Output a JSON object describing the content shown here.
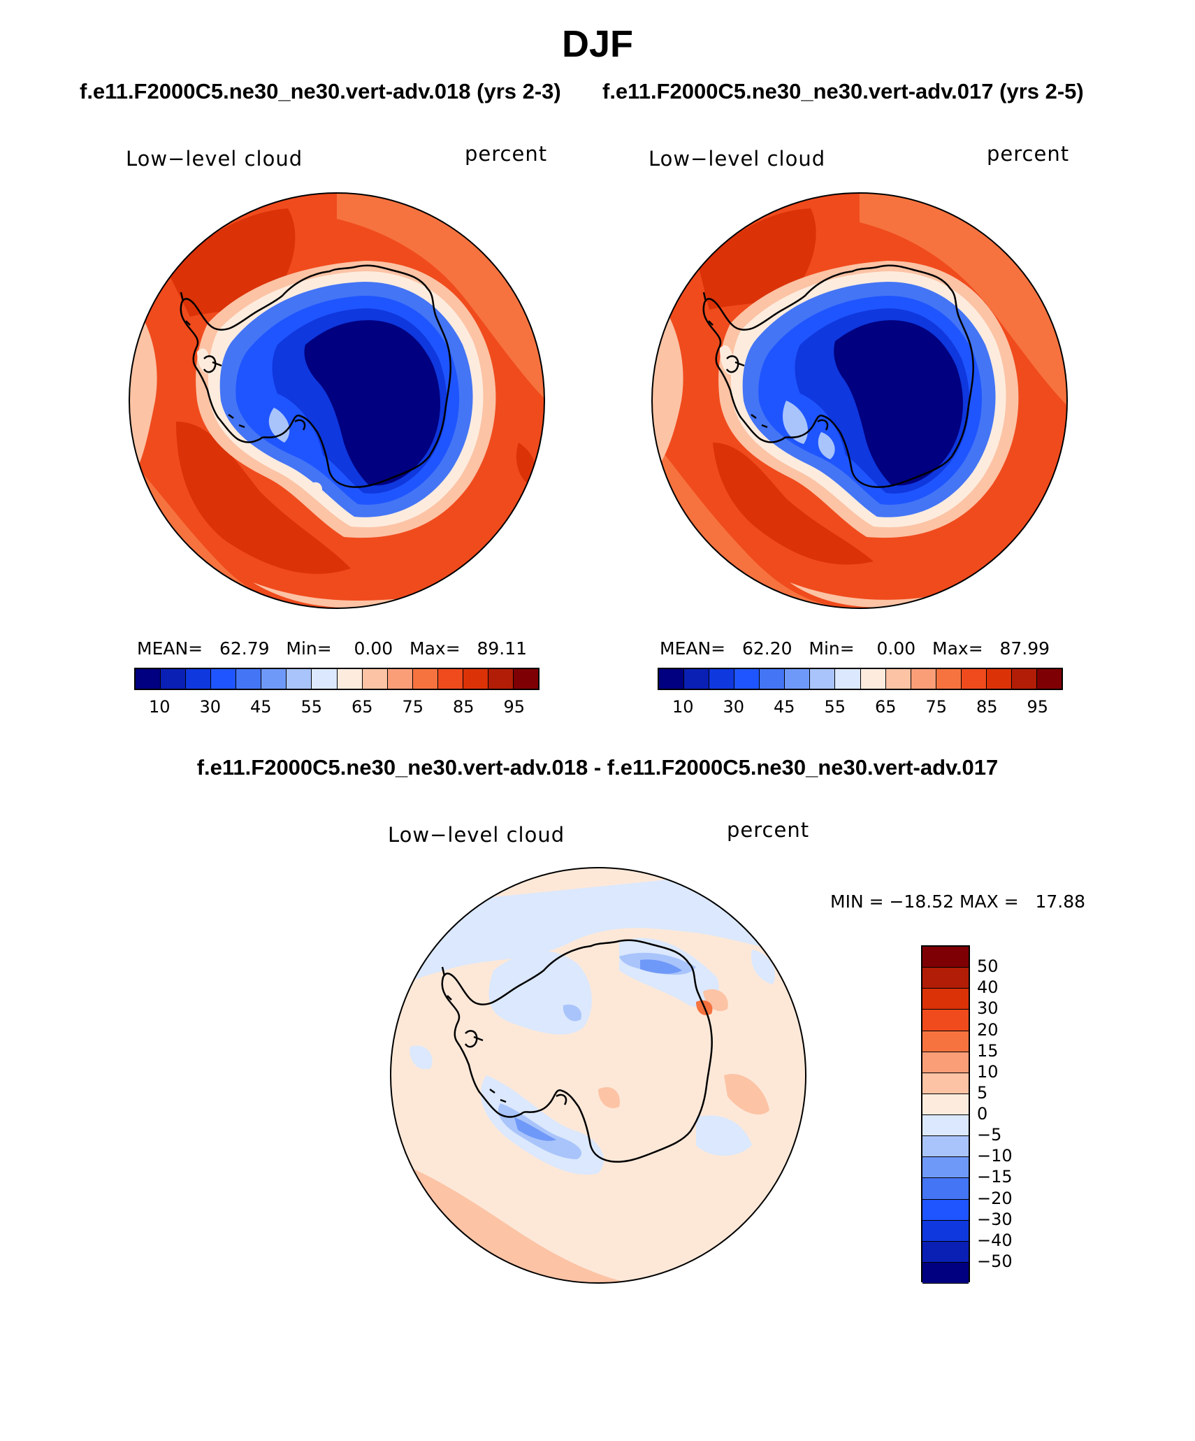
{
  "title": "DJF",
  "top_subtitle_left": "f.e11.F2000C5.ne30_ne30.vert-adv.018 (yrs 2-3)",
  "top_subtitle_right": "f.e11.F2000C5.ne30_ne30.vert-adv.017 (yrs 2-5)",
  "diff_subtitle": "f.e11.F2000C5.ne30_ne30.vert-adv.018 - f.e11.F2000C5.ne30_ne30.vert-adv.017",
  "panels": [
    {
      "variable": "Low−level cloud",
      "units": "percent",
      "stats": {
        "mean_label": "MEAN=",
        "mean": "62.79",
        "min_label": "Min=",
        "min": "0.00",
        "max_label": "Max=",
        "max": "89.11"
      }
    },
    {
      "variable": "Low−level cloud",
      "units": "percent",
      "stats": {
        "mean_label": "MEAN=",
        "mean": "62.20",
        "min_label": "Min=",
        "min": "0.00",
        "max_label": "Max=",
        "max": "87.99"
      }
    },
    {
      "variable": "Low−level cloud",
      "units": "percent",
      "stats_text": "MIN = −18.52 MAX =   17.88"
    }
  ],
  "colorbar_main": {
    "tick_labels": [
      "10",
      "30",
      "45",
      "55",
      "65",
      "75",
      "85",
      "95"
    ],
    "colors": [
      "#000080",
      "#0a1fb4",
      "#0f38de",
      "#1f55ff",
      "#4475f5",
      "#6f99f8",
      "#a9c4fb",
      "#dbe8fd",
      "#fdecde",
      "#fcc3a5",
      "#fa9e78",
      "#f6733f",
      "#f04b1d",
      "#db3208",
      "#b21d07",
      "#7e0004"
    ]
  },
  "colorbar_diff": {
    "tick_labels": [
      "50",
      "40",
      "30",
      "20",
      "15",
      "10",
      "5",
      "0",
      "−5",
      "−10",
      "−15",
      "−20",
      "−30",
      "−40",
      "−50"
    ],
    "colors": [
      "#7e0004",
      "#b21d07",
      "#db3208",
      "#f04b1d",
      "#f6733f",
      "#fa9e78",
      "#fcc3a5",
      "#fdecde",
      "#dbe8fd",
      "#a9c4fb",
      "#6f99f8",
      "#4475f5",
      "#1f55ff",
      "#0f38de",
      "#0a1fb4",
      "#000080"
    ]
  },
  "map_colors": {
    "ocean_main": "#f04b1d",
    "ocean_dark": "#db3208",
    "ocean_light": "#f6733f",
    "ring_pale": "#fcc3a5",
    "ring_white": "#fdecde",
    "ice_edge": "#4475f5",
    "ice_mid": "#1f55ff",
    "ice_inner": "#0f38de",
    "ice_core": "#000080",
    "diff_base": "#fde8d8",
    "diff_blue_light": "#dbe8fd",
    "diff_blue_mid": "#a9c4fb",
    "diff_blue_strong": "#6f99f8",
    "diff_red_light": "#fcc3a5",
    "diff_red_strong": "#f6733f",
    "coastline": "#000000"
  }
}
